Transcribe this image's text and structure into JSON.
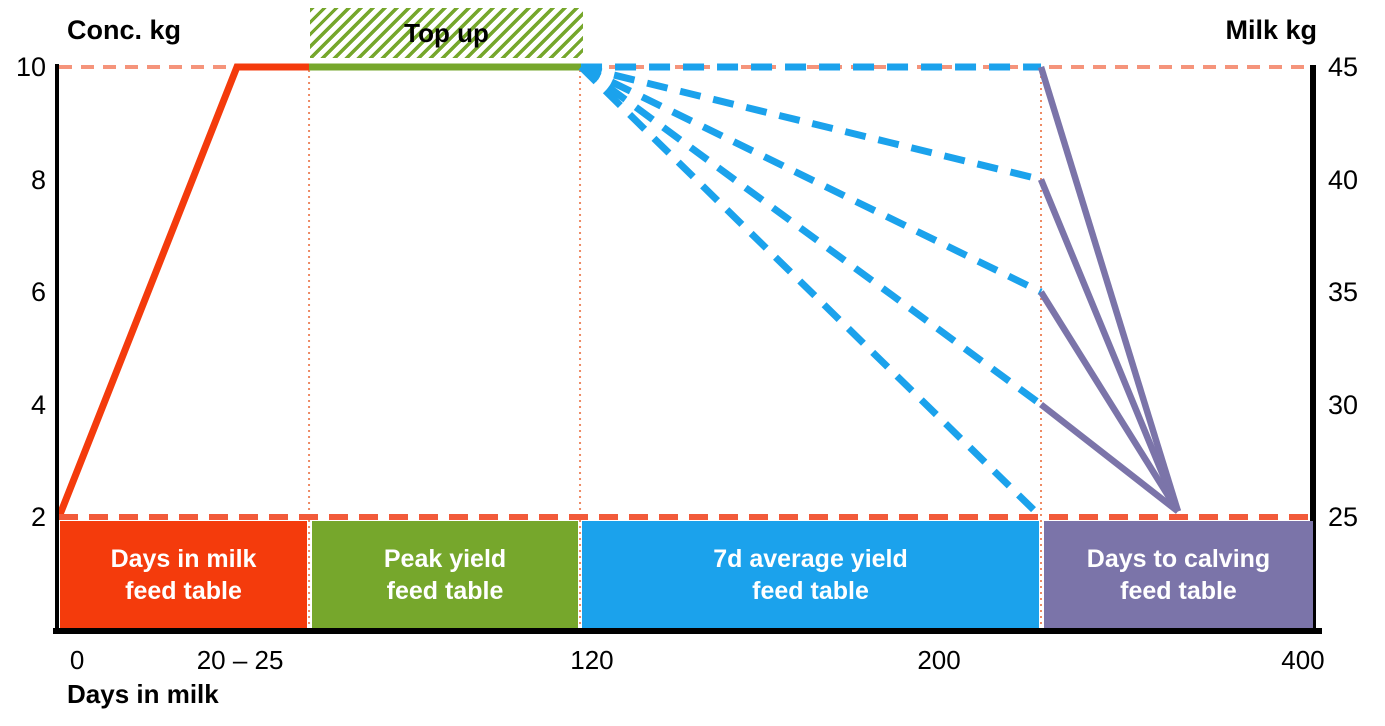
{
  "chart_data": {
    "type": "line",
    "title": "",
    "left_axis": {
      "label": "Conc. kg",
      "values": [
        10,
        8,
        6,
        4,
        2
      ],
      "range": [
        2,
        10
      ]
    },
    "right_axis": {
      "label": "Milk kg",
      "values": [
        45,
        40,
        35,
        30,
        25
      ],
      "range": [
        25,
        45
      ]
    },
    "x_axis": {
      "label": "Days in milk",
      "tick_labels": [
        "0",
        "20 – 25",
        "120",
        "200",
        "400"
      ],
      "tick_fx": [
        0.0144,
        0.1444,
        0.425,
        0.7018,
        0.992
      ],
      "note": "schematic non-linear day scale"
    },
    "top_up": {
      "label": "Top up"
    },
    "reference": {
      "top_dashed_conc": 10,
      "top_dashed_milk": 45,
      "bottom_dashed_conc": 2,
      "bottom_dashed_milk": 25,
      "phase_boundaries_fx": [
        0.1994,
        0.4155,
        0.7831
      ]
    },
    "series": [
      {
        "name": "days-in-milk-ramp",
        "color": "#F43B0C",
        "style": "solid",
        "width": 7,
        "points": [
          {
            "fx": 0.0,
            "conc": 2
          },
          {
            "fx": 0.1419,
            "conc": 10
          },
          {
            "fx": 0.1994,
            "conc": 10
          }
        ]
      },
      {
        "name": "peak-yield-plateau",
        "color": "#76A72C",
        "style": "solid",
        "width": 7,
        "points": [
          {
            "fx": 0.1994,
            "conc": 10
          },
          {
            "fx": 0.4163,
            "conc": 10
          }
        ]
      },
      {
        "name": "7d-average-yield-fan",
        "color": "#1BA2EC",
        "style": "dashed",
        "width": 7,
        "dash": [
          21,
          13
        ],
        "origin": {
          "fx": 0.4163,
          "conc": 10
        },
        "end_fx": 0.7831,
        "end_milk": [
          45,
          40,
          35,
          30,
          25
        ]
      },
      {
        "name": "days-to-calving-taper",
        "color": "#7B74A9",
        "style": "solid",
        "width": 6.5,
        "start_fx": 0.7831,
        "start_milk": [
          45,
          40,
          35,
          30
        ],
        "converge": {
          "fx": 0.8923,
          "conc": 2.1
        }
      }
    ],
    "bands": [
      {
        "name": "days-in-milk-feed-table",
        "line1": "Days in milk",
        "line2": "feed table",
        "color": "#F43B0C",
        "fx": [
          0.0008,
          0.1978
        ]
      },
      {
        "name": "peak-yield-feed-table",
        "line1": "Peak yield",
        "line2": "feed table",
        "color": "#76A72C",
        "fx": [
          0.2018,
          0.4139
        ]
      },
      {
        "name": "7d-average-yield-feed-table",
        "line1": "7d average yield",
        "line2": "feed table",
        "color": "#1BA2EC",
        "fx": [
          0.4171,
          0.7815
        ]
      },
      {
        "name": "days-to-calving-feed-table",
        "line1": "Days to calving",
        "line2": "feed table",
        "color": "#7B74A9",
        "fx": [
          0.7855,
          1.0
        ]
      }
    ],
    "colors": {
      "top_dashed": "#F5947B",
      "bottom_dashed": "#F25A3A",
      "vertical_dotted": "#EE8A64",
      "axis": "#000000",
      "band_text": "#FFFFFF",
      "top_up_hatch": "#76A72C"
    }
  }
}
